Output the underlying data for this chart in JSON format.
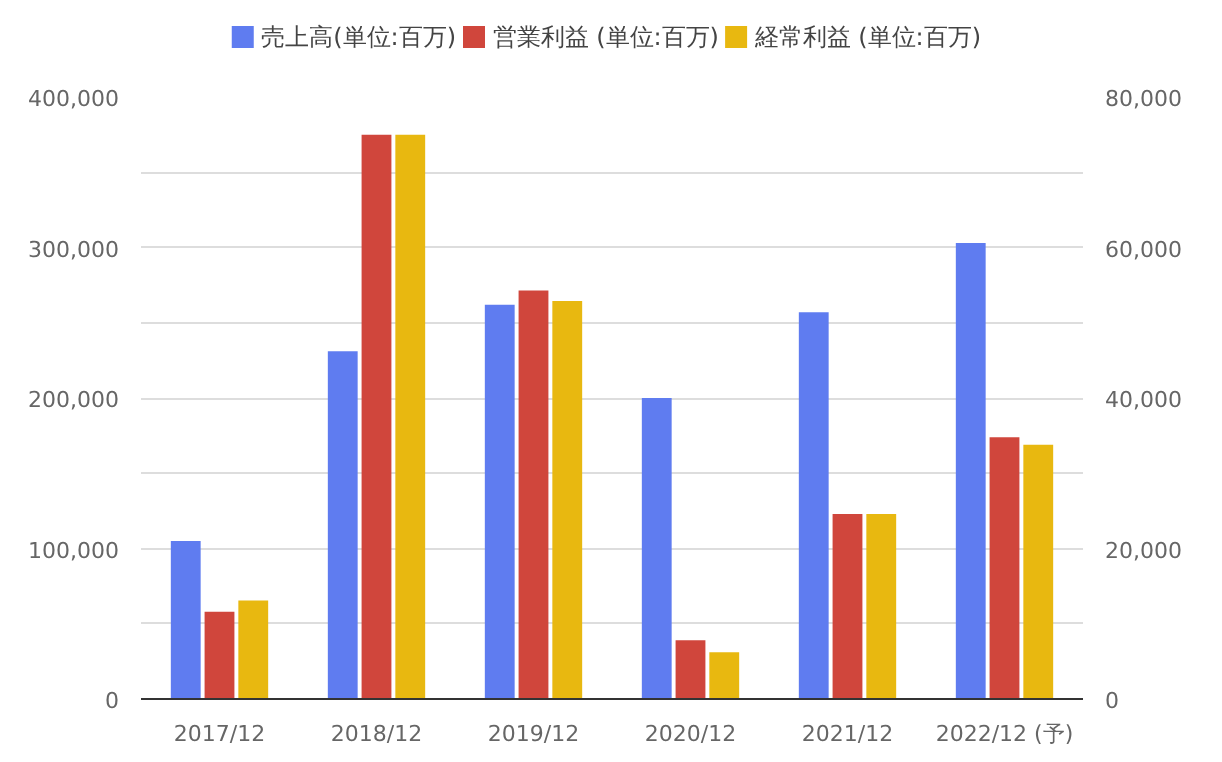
{
  "chart_data": {
    "type": "bar",
    "categories": [
      "2017/12",
      "2018/12",
      "2019/12",
      "2020/12",
      "2021/12",
      "2022/12 (予)"
    ],
    "series": [
      {
        "name": "売上高(単位:百万)",
        "color": "#5f7cf0",
        "values": [
          105000,
          231000,
          262000,
          200000,
          257000,
          303000
        ]
      },
      {
        "name": "営業利益 (単位:百万)",
        "color": "#d0463c",
        "values": [
          11600,
          75000,
          54300,
          7800,
          24600,
          34800
        ],
        "axis": "y2"
      },
      {
        "name": "経常利益 (単位:百万)",
        "color": "#e8b810",
        "values": [
          13100,
          75000,
          52900,
          6200,
          24600,
          33800
        ],
        "axis": "y2"
      }
    ],
    "ylim": [
      0,
      400000
    ],
    "yticks": [
      0,
      {
        "value": 50000,
        "label": null
      },
      {
        "value": 100000,
        "label": "100,000"
      },
      {
        "value": 150000,
        "label": null
      },
      {
        "value": 200000,
        "label": "200,000"
      },
      {
        "value": 250000,
        "label": null
      },
      {
        "value": 300000,
        "label": "300,000"
      },
      {
        "value": 350000,
        "label": null
      },
      {
        "value": 400000,
        "label": "400,000"
      }
    ],
    "y2lim": [
      0,
      80000
    ],
    "y2ticks": [
      0,
      {
        "value": 20000,
        "label": "20,000"
      },
      {
        "value": 40000,
        "label": "40,000"
      },
      {
        "value": 60000,
        "label": "60,000"
      },
      {
        "value": 80000,
        "label": "80,000"
      }
    ],
    "grid": "y",
    "legend": "top"
  }
}
